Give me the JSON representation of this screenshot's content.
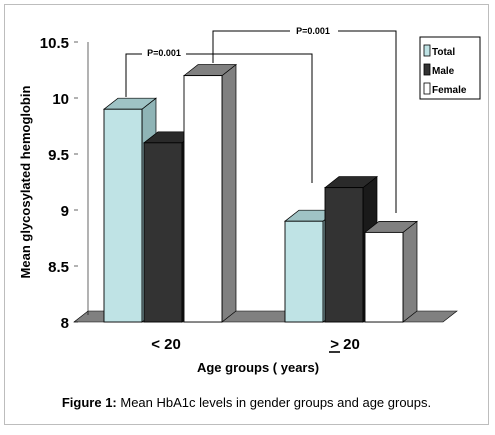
{
  "chart_data": {
    "type": "bar",
    "style": "3d",
    "ylabel": "Mean glycosylated hemoglobin",
    "xlabel": "Age groups ( years)",
    "ylim": [
      8,
      10.5
    ],
    "yticks": [
      "8",
      "8.5",
      "9",
      "9.5",
      "10",
      "10.5"
    ],
    "categories": [
      "< 20",
      "> 20"
    ],
    "series": [
      {
        "name": "Total",
        "values": [
          9.9,
          8.9
        ],
        "color": "#bfe3e5"
      },
      {
        "name": "Male",
        "values": [
          9.6,
          9.2
        ],
        "color": "#333333"
      },
      {
        "name": "Female",
        "values": [
          10.2,
          8.8
        ],
        "color": "#ffffff"
      }
    ],
    "annotations": [
      {
        "text": "P=0.001"
      },
      {
        "text": "P=0.001"
      }
    ],
    "legend_placement": "top-right",
    "grid": false,
    "wall_color": "#808080"
  },
  "caption": {
    "label": "Figure 1:",
    "text": " Mean HbA1c levels in gender groups and age groups."
  }
}
